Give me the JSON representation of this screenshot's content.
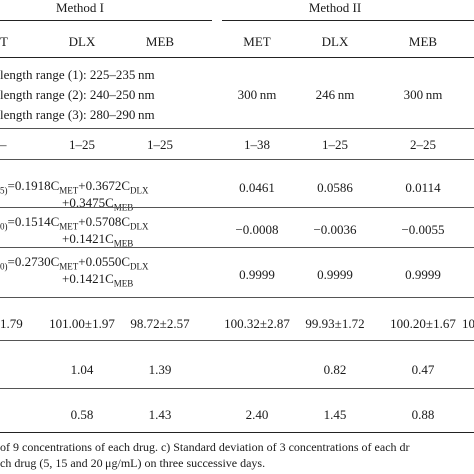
{
  "header": {
    "method1": "Method I",
    "method2": "Method II",
    "cols": [
      "T",
      "DLX",
      "MEB",
      "MET",
      "DLX",
      "MEB"
    ]
  },
  "wavelength": {
    "r1": "length range (1): 225–235 nm",
    "r2": "length range (2): 240–250 nm",
    "r3": "length range (3): 280–290 nm",
    "m2": [
      "300 nm",
      "246 nm",
      "300 nm"
    ]
  },
  "range": {
    "lead": "–",
    "m1": [
      "1–25",
      "1–25"
    ],
    "m2": [
      "1–38",
      "1–25",
      "2–25"
    ]
  },
  "eq1": {
    "sub": "5)",
    "l1": "=0.1918C",
    "l1s1": "MET",
    "l1b": "+0.3672C",
    "l1s2": "DLX",
    "l2": "+0.3475C",
    "l2s": "MEB",
    "v": [
      "0.0461",
      "0.0586",
      "0.0114"
    ]
  },
  "eq2": {
    "sub": "0)",
    "l1": "=0.1514C",
    "l1s1": "MET",
    "l1b": "+0.5708C",
    "l1s2": "DLX",
    "l2": "+0.1421C",
    "l2s": "MEB",
    "v": [
      "−0.0008",
      "−0.0036",
      "−0.0055"
    ]
  },
  "eq3": {
    "sub": "0)",
    "l1": "=0.2730C",
    "l1s1": "MET",
    "l1b": "+0.0550C",
    "l1s2": "DLX",
    "l2": "+0.1421C",
    "l2s": "MEB",
    "v": [
      "0.9999",
      "0.9999",
      "0.9999"
    ]
  },
  "recovery": {
    "lead": "1.79",
    "vals": [
      "101.00±1.97",
      "98.72±2.57",
      "100.32±2.87",
      "99.93±1.72",
      "100.20±1.67"
    ],
    "tail": "10"
  },
  "rsd1": [
    "1.04",
    "1.39",
    "0.82",
    "0.47"
  ],
  "rsd2": [
    "0.58",
    "1.43",
    "2.40",
    "1.45",
    "0.88"
  ],
  "footnote": {
    "l1": "of 9 concentrations of each drug. c) Standard deviation of 3 concentrations of each dr",
    "l2": "ch drug (5, 15 and 20 μg/mL) on three successive days."
  }
}
